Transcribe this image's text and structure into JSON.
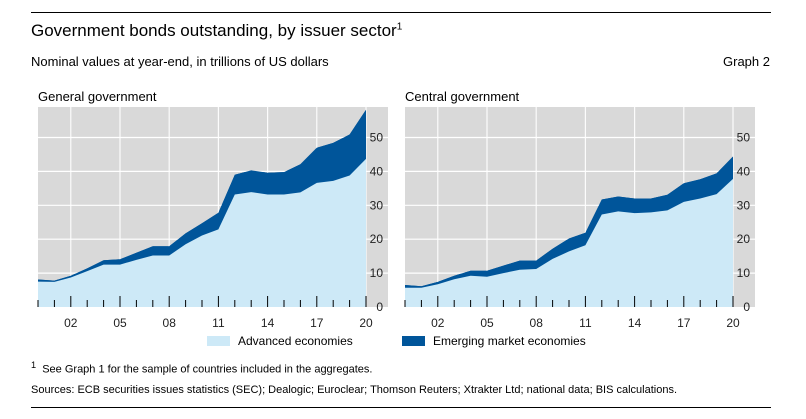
{
  "header": {
    "title": "Government bonds outstanding, by issuer sector",
    "title_sup": "1",
    "subtitle": "Nominal values at year-end, in trillions of US dollars",
    "graph_number": "Graph 2"
  },
  "colors": {
    "background": "#d9d9d9",
    "advanced": "#cde9f7",
    "emerging": "#00559a",
    "grid": "#ffffff"
  },
  "chart_data": [
    {
      "type": "area",
      "stacked": true,
      "title": "General government",
      "x": [
        2000,
        2001,
        2002,
        2003,
        2004,
        2005,
        2006,
        2007,
        2008,
        2009,
        2010,
        2011,
        2012,
        2013,
        2014,
        2015,
        2016,
        2017,
        2018,
        2019,
        2020
      ],
      "series": [
        {
          "name": "Advanced economies",
          "values": [
            7.5,
            7.4,
            8.7,
            10.6,
            12.5,
            12.5,
            13.9,
            15.2,
            15.2,
            18.5,
            21.1,
            22.9,
            33.2,
            33.9,
            33.2,
            33.2,
            33.8,
            36.6,
            37.2,
            38.8,
            43.7
          ]
        },
        {
          "name": "Emerging market economies",
          "values": [
            0.6,
            0.4,
            0.5,
            0.8,
            1.3,
            1.6,
            2.1,
            2.7,
            2.7,
            3.2,
            3.6,
            4.9,
            5.8,
            6.4,
            6.4,
            6.6,
            8.3,
            10.4,
            11.2,
            12.1,
            14.5
          ]
        }
      ],
      "xticklabels": [
        "02",
        "05",
        "08",
        "11",
        "14",
        "17",
        "20"
      ],
      "xtickvalues": [
        2002,
        2005,
        2008,
        2011,
        2014,
        2017,
        2020
      ],
      "yticks": [
        0,
        10,
        20,
        30,
        40,
        50
      ],
      "ylim": [
        0,
        59
      ],
      "xlim": [
        2000,
        2020
      ],
      "grid": true
    },
    {
      "type": "area",
      "stacked": true,
      "title": "Central government",
      "x": [
        2000,
        2001,
        2002,
        2003,
        2004,
        2005,
        2006,
        2007,
        2008,
        2009,
        2010,
        2011,
        2012,
        2013,
        2014,
        2015,
        2016,
        2017,
        2018,
        2019,
        2020
      ],
      "series": [
        {
          "name": "Advanced economies",
          "values": [
            5.7,
            5.7,
            6.7,
            8.2,
            9.2,
            8.9,
            10.0,
            11.0,
            11.2,
            14.2,
            16.4,
            18.2,
            27.3,
            28.2,
            27.7,
            27.9,
            28.5,
            31.0,
            32.0,
            33.3,
            37.8
          ]
        },
        {
          "name": "Emerging market economies",
          "values": [
            0.8,
            0.4,
            0.7,
            1.0,
            1.5,
            1.8,
            2.2,
            2.7,
            2.5,
            3.0,
            3.8,
            3.7,
            4.4,
            4.4,
            4.3,
            4.1,
            4.6,
            5.5,
            5.7,
            6.1,
            6.6
          ]
        }
      ],
      "xticklabels": [
        "02",
        "05",
        "08",
        "11",
        "14",
        "17",
        "20"
      ],
      "xtickvalues": [
        2002,
        2005,
        2008,
        2011,
        2014,
        2017,
        2020
      ],
      "yticks": [
        0,
        10,
        20,
        30,
        40,
        50
      ],
      "ylim": [
        0,
        59
      ],
      "xlim": [
        2000,
        2020
      ],
      "grid": true
    }
  ],
  "legend": {
    "advanced": "Advanced economies",
    "emerging": "Emerging market economies"
  },
  "footnote": {
    "marker": "1",
    "text": "See Graph 1 for the sample of countries included in the aggregates."
  },
  "sources": "Sources: ECB securities issues statistics (SEC); Dealogic; Euroclear; Thomson Reuters; Xtrakter Ltd; national data; BIS calculations."
}
